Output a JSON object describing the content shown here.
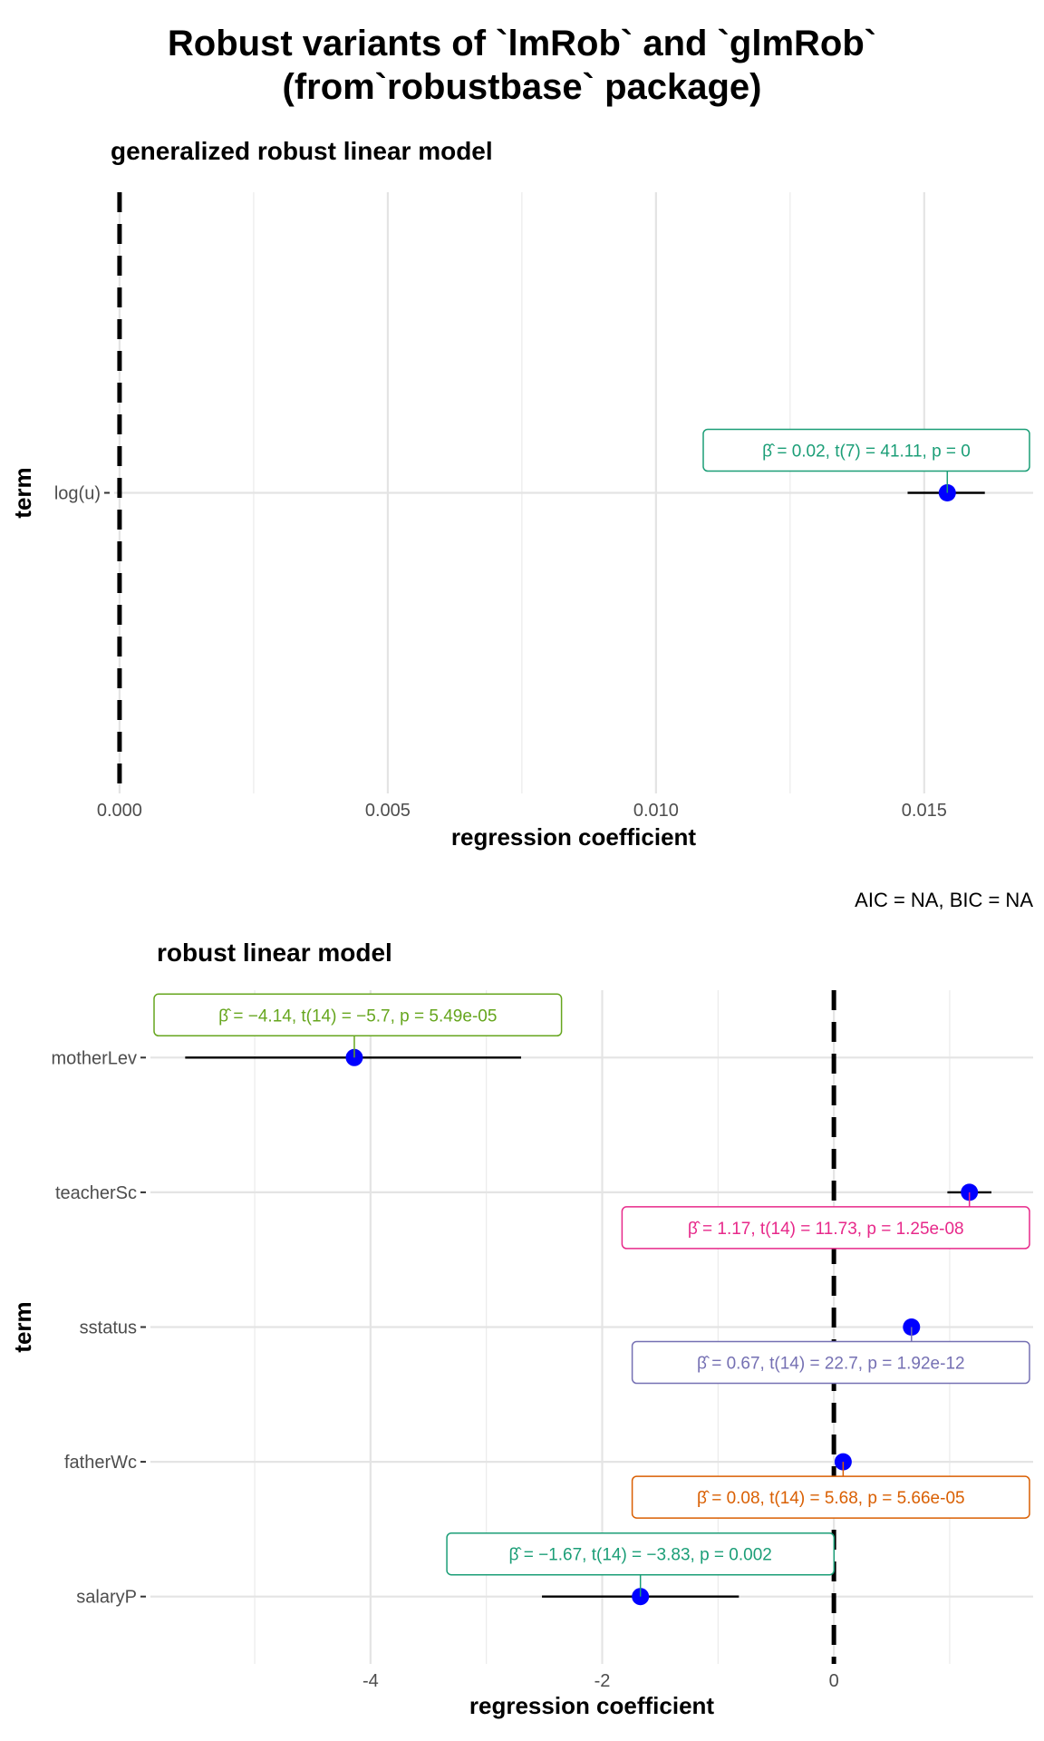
{
  "figure": {
    "title_line1": "Robust variants of `lmRob` and `glmRob`",
    "title_line2": "(from`robustbase` package)"
  },
  "chart_data": [
    {
      "type": "scatter",
      "subtype": "coefficient-plot",
      "title": "generalized robust linear model",
      "xlabel": "regression coefficient",
      "ylabel": "term",
      "xlim": [
        -0.0001,
        0.01703
      ],
      "xticks": [
        0,
        0.005,
        0.01,
        0.015
      ],
      "xtick_labels": [
        "0.000",
        "0.005",
        "0.010",
        "0.015"
      ],
      "reference_line": 0,
      "grid": true,
      "caption": "",
      "terms": [
        {
          "term": "log(u)",
          "estimate": 0.01543,
          "conf_low": 0.01469,
          "conf_high": 0.01613,
          "label": "β̂ = 0.02, t(7) = 41.11, p = 0",
          "label_color": "#1b9e77",
          "label_side": "above"
        }
      ]
    },
    {
      "type": "scatter",
      "subtype": "coefficient-plot",
      "title": "robust linear model",
      "xlabel": "regression coefficient",
      "ylabel": "term",
      "xlim": [
        -5.9,
        1.72
      ],
      "xticks": [
        -4,
        -2,
        0
      ],
      "xtick_labels": [
        "-4",
        "-2",
        "0"
      ],
      "reference_line": 0,
      "grid": true,
      "caption": "AIC = NA, BIC = NA",
      "terms": [
        {
          "term": "motherLev",
          "estimate": -4.14,
          "conf_low": -5.6,
          "conf_high": -2.7,
          "label": "β̂ = −4.14, t(14) = −5.7, p = 5.49e-05",
          "label_color": "#66a61e",
          "label_side": "above"
        },
        {
          "term": "teacherSc",
          "estimate": 1.17,
          "conf_low": 0.98,
          "conf_high": 1.36,
          "label": "β̂ = 1.17, t(14) = 11.73, p = 1.25e-08",
          "label_color": "#e7298a",
          "label_side": "below"
        },
        {
          "term": "sstatus",
          "estimate": 0.67,
          "conf_low": 0.61,
          "conf_high": 0.73,
          "label": "β̂ = 0.67, t(14) = 22.7, p = 1.92e-12",
          "label_color": "#7570b3",
          "label_side": "below"
        },
        {
          "term": "fatherWc",
          "estimate": 0.08,
          "conf_low": 0.05,
          "conf_high": 0.11,
          "label": "β̂ = 0.08, t(14) = 5.68, p = 5.66e-05",
          "label_color": "#d95f02",
          "label_side": "below"
        },
        {
          "term": "salaryP",
          "estimate": -1.67,
          "conf_low": -2.52,
          "conf_high": -0.82,
          "label": "β̂ = −1.67, t(14) = −3.83, p = 0.002",
          "label_color": "#1b9e77",
          "label_side": "above"
        }
      ]
    }
  ]
}
